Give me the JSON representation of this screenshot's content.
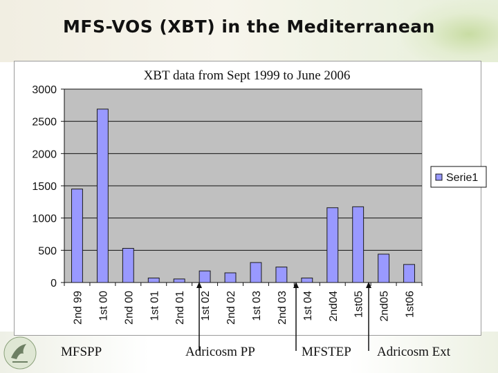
{
  "slide": {
    "title": "MFS-VOS (XBT) in the Mediterranean"
  },
  "chart_data": {
    "type": "bar",
    "title": "XBT data from Sept 1999 to June 2006",
    "categories": [
      "2nd 99",
      "1st 00",
      "2nd 00",
      "1st 01",
      "2nd 01",
      "1st 02",
      "2nd 02",
      "1st 03",
      "2nd 03",
      "1st 04",
      "2nd04",
      "1st05",
      "2nd05",
      "1st06"
    ],
    "series": [
      {
        "name": "Serie1",
        "values": [
          1450,
          2690,
          530,
          70,
          55,
          180,
          150,
          310,
          240,
          70,
          1160,
          1175,
          440,
          280
        ],
        "color": "#9999ff"
      }
    ],
    "ylim": [
      0,
      3000
    ],
    "yticks": [
      0,
      500,
      1000,
      1500,
      2000,
      2500,
      3000
    ],
    "plot_background": "#c0c0c0",
    "grid": true,
    "legend_position": "right"
  },
  "annotations": {
    "labels": [
      "MFSPP",
      "Adricosm PP",
      "MFSTEP",
      "Adricosm Ext"
    ]
  }
}
